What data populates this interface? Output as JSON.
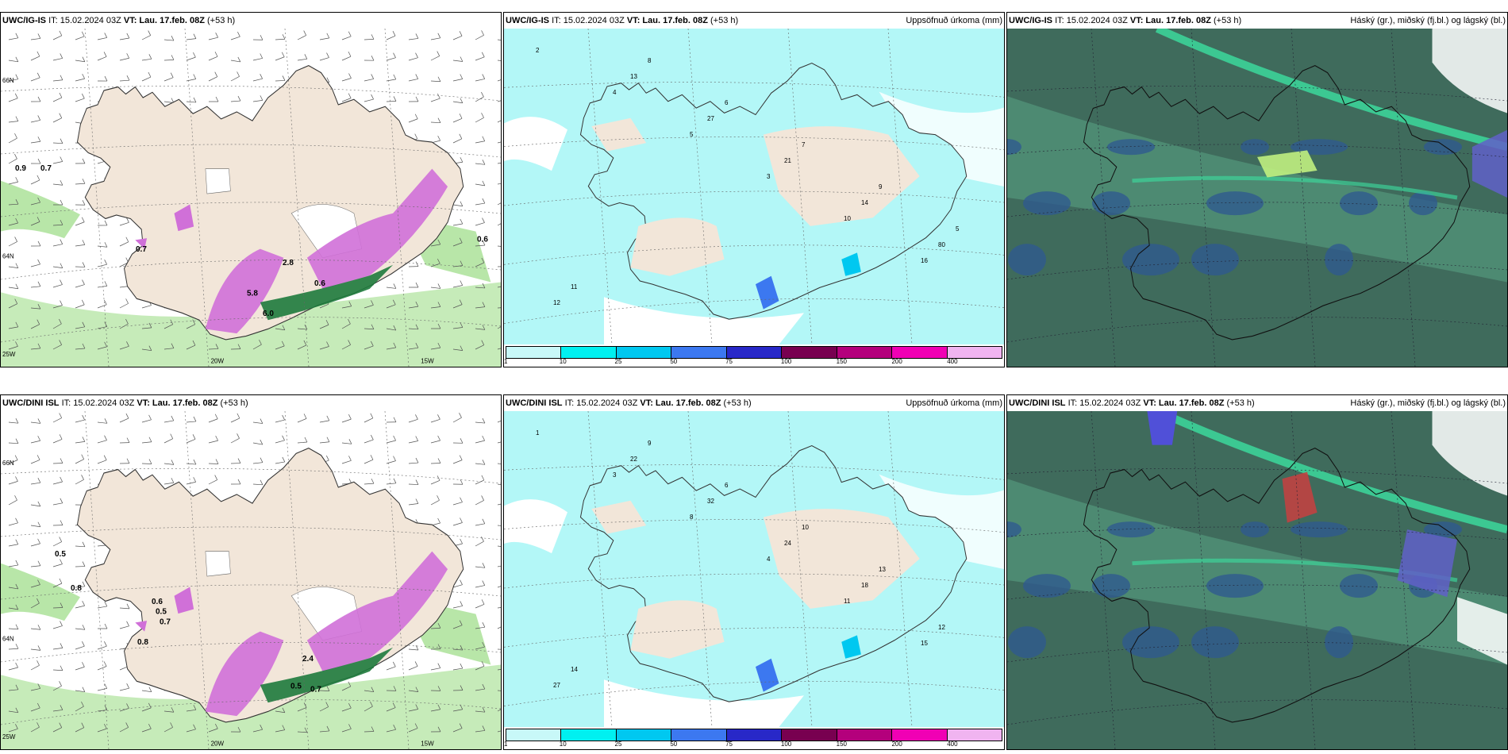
{
  "rows": [
    {
      "model": "UWC/IG-IS",
      "panels": [
        {
          "type": "wind",
          "title_model": "UWC/IG-IS",
          "it": "IT: 15.02.2024 03Z",
          "vt_label": "VT:",
          "vt": "Lau. 17.feb. 08Z",
          "lead": "(+53 h)",
          "right": ""
        },
        {
          "type": "precip",
          "title_model": "UWC/IG-IS",
          "it": "IT: 15.02.2024 03Z",
          "vt_label": "VT:",
          "vt": "Lau. 17.feb. 08Z",
          "lead": "(+53 h)",
          "right": "Uppsöfnuð úrkoma (mm)"
        },
        {
          "type": "cloud",
          "title_model": "UWC/IG-IS",
          "it": "IT: 15.02.2024 03Z",
          "vt_label": "VT:",
          "vt": "Lau. 17.feb. 08Z",
          "lead": "(+53 h)",
          "right": "Háský (gr.), miðský (fj.bl.) og lágský (bl.)"
        }
      ]
    },
    {
      "model": "UWC/DINI ISL",
      "panels": [
        {
          "type": "wind",
          "title_model": "UWC/DINI ISL",
          "it": "IT: 15.02.2024 03Z",
          "vt_label": "VT:",
          "vt": "Lau. 17.feb. 08Z",
          "lead": "(+53 h)",
          "right": ""
        },
        {
          "type": "precip",
          "title_model": "UWC/DINI ISL",
          "it": "IT: 15.02.2024 03Z",
          "vt_label": "VT:",
          "vt": "Lau. 17.feb. 08Z",
          "lead": "(+53 h)",
          "right": "Uppsöfnuð úrkoma (mm)"
        },
        {
          "type": "cloud",
          "title_model": "UWC/DINI ISL",
          "it": "IT: 15.02.2024 03Z",
          "vt_label": "VT:",
          "vt": "Lau. 17.feb. 08Z",
          "lead": "(+53 h)",
          "right": "Háský (gr.), miðský (fj.bl.) og lágský (bl.)"
        }
      ]
    }
  ],
  "grid_labels": {
    "lat66": "66N",
    "lat64": "64N",
    "lon20": "20W",
    "lon15": "15W",
    "lon25": "25W"
  },
  "legend": {
    "labels": [
      "1",
      "10",
      "25",
      "50",
      "75",
      "100",
      "150",
      "200",
      "400"
    ],
    "colors": [
      "#c8f8f8",
      "#00f0f0",
      "#00c8f0",
      "#3c78f0",
      "#2828c8",
      "#780050",
      "#b4007c",
      "#f000b4",
      "#f0b4f0"
    ]
  },
  "wind_values_top": [
    "0.9",
    "0.7",
    "0.7",
    "0.6",
    "0.6",
    "5.8",
    "2.8",
    "6.0"
  ],
  "wind_values_bottom": [
    "0.5",
    "0.8",
    "0.6",
    "0.5",
    "0.7",
    "0.8",
    "2.4",
    "0.7",
    "0.5"
  ],
  "precip_values_top": [
    "2",
    "4",
    "5",
    "3",
    "10",
    "16",
    "12",
    "13",
    "27",
    "21",
    "14",
    "80",
    "11",
    "8",
    "6",
    "7",
    "9",
    "5"
  ],
  "precip_values_bottom": [
    "1",
    "3",
    "8",
    "4",
    "11",
    "15",
    "27",
    "22",
    "32",
    "24",
    "18",
    "12",
    "14",
    "9",
    "6",
    "10",
    "13"
  ],
  "colors": {
    "land": "#f2e6d9",
    "green_light": "#b8e6a8",
    "green_mid": "#5cbf5c",
    "green_dark": "#1e7a3c",
    "magenta": "#d070d8",
    "precip_bg": "#b3f7f7",
    "cloud_dark": "#3f6b5c",
    "cloud_mid": "#4d8a72",
    "cloud_blue": "#2f5a8f",
    "cloud_bright": "#3ce0a0"
  }
}
